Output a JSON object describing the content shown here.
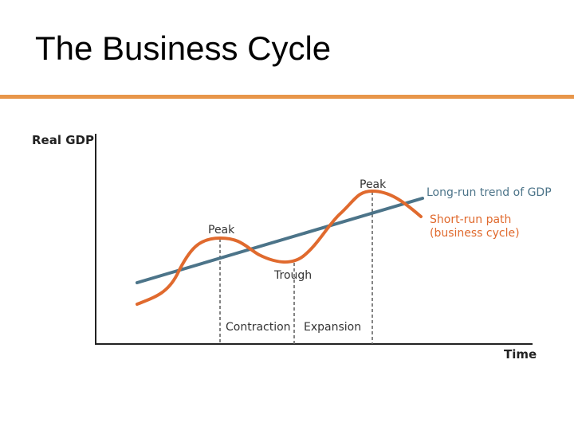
{
  "slide": {
    "title": "The Business Cycle"
  },
  "diagram": {
    "y_axis_label": "Real GDP",
    "x_axis_label": "Time",
    "labels": {
      "peak_left": "Peak",
      "peak_right": "Peak",
      "trough": "Trough",
      "contraction": "Contraction",
      "expansion": "Expansion",
      "trend": "Long-run trend of GDP",
      "path_line1": "Short-run path",
      "path_line2": "(business cycle)"
    }
  },
  "colors": {
    "title_rule": "#E8964A",
    "trend_line": "#4C7489",
    "path_line": "#E06A2E",
    "axis": "#222222",
    "dashed": "#666666",
    "text": "#333333"
  }
}
